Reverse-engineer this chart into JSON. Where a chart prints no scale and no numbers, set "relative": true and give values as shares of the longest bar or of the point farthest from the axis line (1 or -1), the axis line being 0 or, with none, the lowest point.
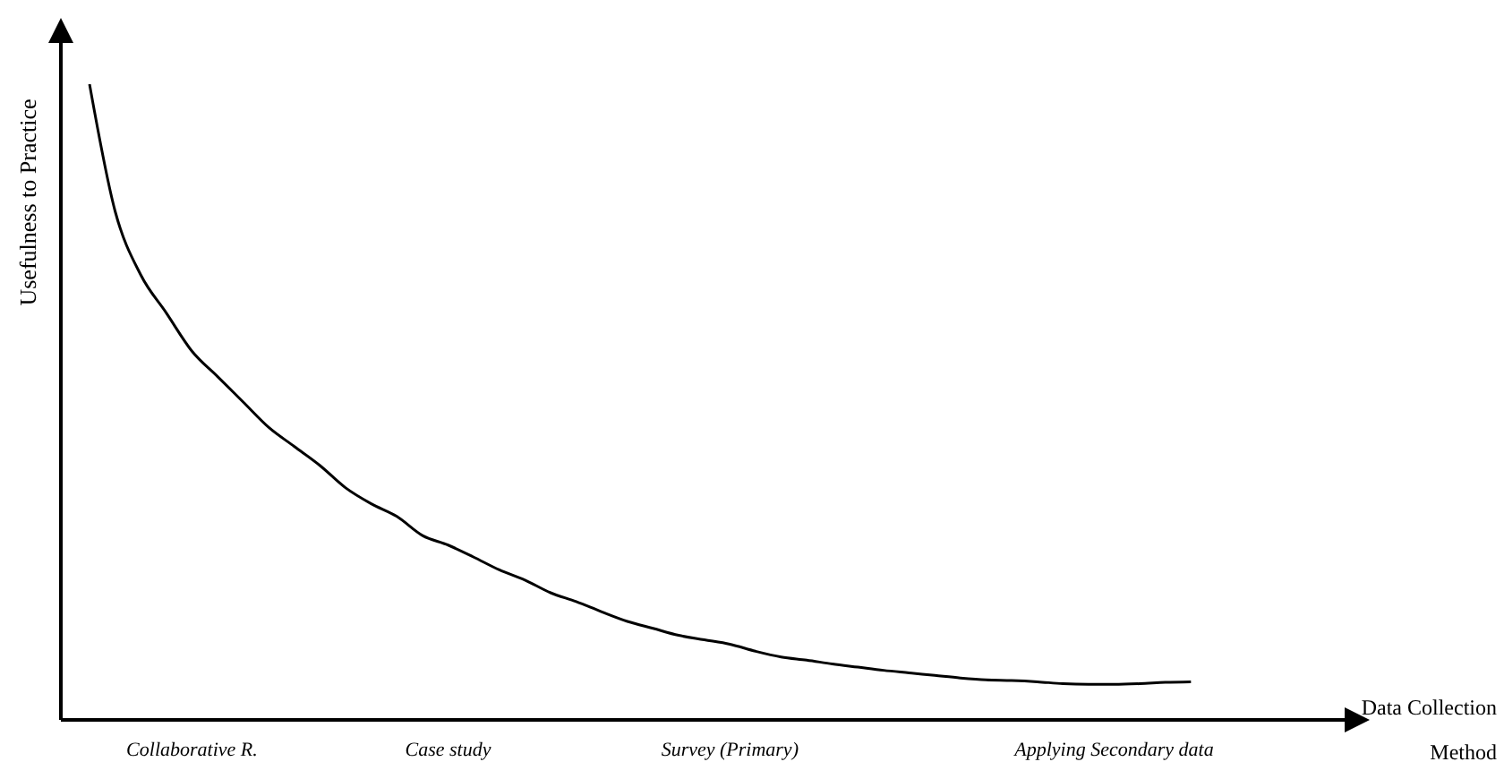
{
  "chart_data": {
    "type": "line",
    "relative": true,
    "xlabel": "Data Collection Method",
    "ylabel": "Usefulness to Practice",
    "marker": "none",
    "line_style": "solid",
    "categories": [
      null,
      null,
      null,
      null,
      "Collaborative R.",
      null,
      null,
      null,
      null,
      null,
      null,
      null,
      null,
      null,
      "Case study",
      null,
      null,
      null,
      null,
      null,
      null,
      null,
      null,
      null,
      null,
      "Survey (Primary)",
      null,
      null,
      null,
      null,
      null,
      null,
      null,
      null,
      null,
      null,
      null,
      null,
      null,
      null,
      "Applying Secondary data",
      null,
      null,
      null,
      null,
      null,
      null,
      null,
      null,
      null
    ],
    "series": [
      {
        "color": "#000000",
        "values": [
          1.0,
          0.8,
          0.7,
          0.64,
          0.58,
          0.54,
          0.5,
          0.46,
          0.43,
          0.4,
          0.365,
          0.34,
          0.32,
          0.29,
          0.275,
          0.256,
          0.236,
          0.22,
          0.2,
          0.186,
          0.17,
          0.155,
          0.144,
          0.133,
          0.126,
          0.119,
          0.108,
          0.099,
          0.094,
          0.088,
          0.083,
          0.078,
          0.074,
          0.07,
          0.066,
          0.063,
          0.062,
          0.06,
          0.057,
          0.056,
          0.056,
          0.057,
          0.059,
          0.06,
          null,
          null,
          null,
          null,
          null,
          null
        ]
      }
    ]
  }
}
